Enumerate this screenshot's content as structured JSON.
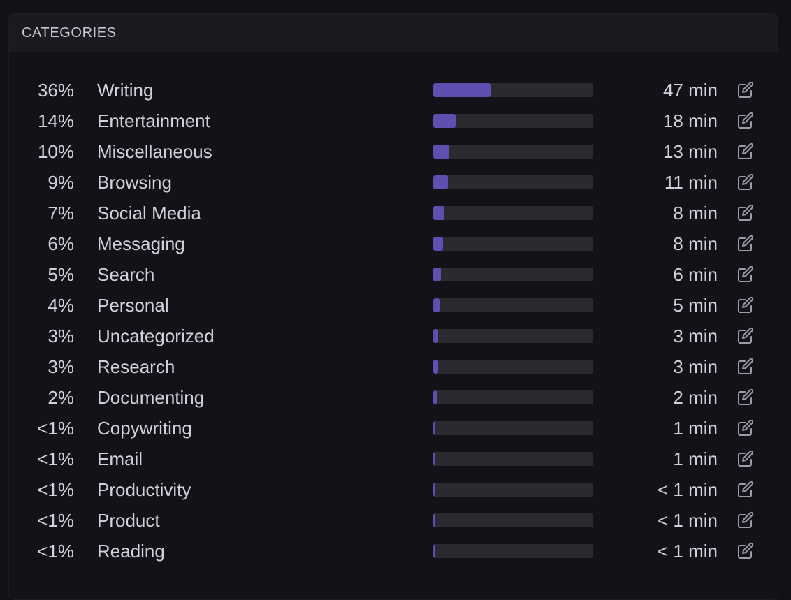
{
  "header": {
    "title": "CATEGORIES"
  },
  "colors": {
    "bar_fill": "#5e4fb0",
    "bar_track": "#2b2a31"
  },
  "categories": [
    {
      "percent": "36%",
      "name": "Writing",
      "time": "47 min",
      "share": 0.36
    },
    {
      "percent": "14%",
      "name": "Entertainment",
      "time": "18 min",
      "share": 0.14
    },
    {
      "percent": "10%",
      "name": "Miscellaneous",
      "time": "13 min",
      "share": 0.1
    },
    {
      "percent": "9%",
      "name": "Browsing",
      "time": "11 min",
      "share": 0.09
    },
    {
      "percent": "7%",
      "name": "Social Media",
      "time": "8 min",
      "share": 0.07
    },
    {
      "percent": "6%",
      "name": "Messaging",
      "time": "8 min",
      "share": 0.06
    },
    {
      "percent": "5%",
      "name": "Search",
      "time": "6 min",
      "share": 0.05
    },
    {
      "percent": "4%",
      "name": "Personal",
      "time": "5 min",
      "share": 0.04
    },
    {
      "percent": "3%",
      "name": "Uncategorized",
      "time": "3 min",
      "share": 0.03
    },
    {
      "percent": "3%",
      "name": "Research",
      "time": "3 min",
      "share": 0.03
    },
    {
      "percent": "2%",
      "name": "Documenting",
      "time": "2 min",
      "share": 0.02
    },
    {
      "percent": "<1%",
      "name": "Copywriting",
      "time": "1 min",
      "share": 0.005
    },
    {
      "percent": "<1%",
      "name": "Email",
      "time": "1 min",
      "share": 0.005
    },
    {
      "percent": "<1%",
      "name": "Productivity",
      "time": "< 1 min",
      "share": 0.003
    },
    {
      "percent": "<1%",
      "name": "Product",
      "time": "< 1 min",
      "share": 0.003
    },
    {
      "percent": "<1%",
      "name": "Reading",
      "time": "< 1 min",
      "share": 0.003
    }
  ]
}
